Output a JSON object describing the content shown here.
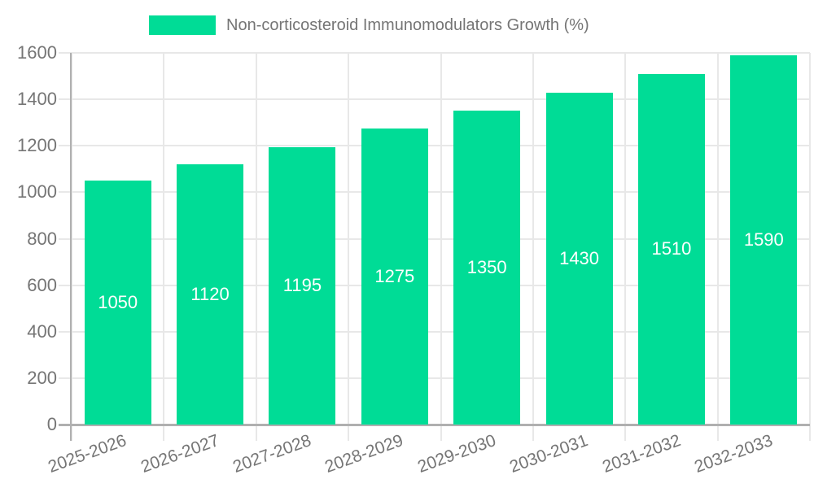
{
  "legend": {
    "label": "Non-corticosteroid Immunomodulators Growth (%)"
  },
  "chart_data": {
    "type": "bar",
    "title": "",
    "xlabel": "",
    "ylabel": "",
    "categories": [
      "2025-2026",
      "2026-2027",
      "2027-2028",
      "2028-2029",
      "2029-2030",
      "2030-2031",
      "2031-2032",
      "2032-2033"
    ],
    "series": [
      {
        "name": "Non-corticosteroid Immunomodulators Growth (%)",
        "values": [
          1050,
          1120,
          1195,
          1275,
          1350,
          1430,
          1510,
          1590
        ]
      }
    ],
    "value_labels_shown_inside_bars": true,
    "ylim": [
      0,
      1600
    ],
    "y_tick_step": 200,
    "y_tick_labels": [
      "0",
      "200",
      "400",
      "600",
      "800",
      "1000",
      "1200",
      "1400",
      "1600"
    ],
    "grid": "horizontal and vertical category boundaries",
    "legend_position": "top",
    "x_label_rotation_deg": -20,
    "colors": {
      "bar": "#00DC96",
      "value_label": "#ffffff",
      "axis_line": "#b0b0b0",
      "gridline": "#e8e8e8",
      "tick_label": "#757575",
      "legend_text": "#757575",
      "background": "#ffffff"
    }
  }
}
